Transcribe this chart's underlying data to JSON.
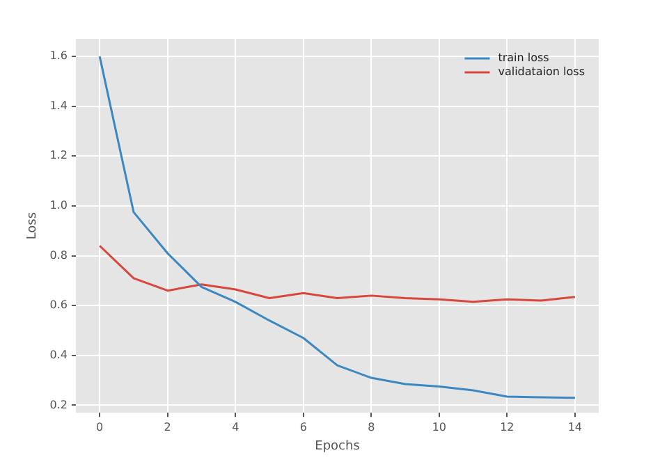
{
  "chart_data": {
    "type": "line",
    "xlabel": "Epochs",
    "ylabel": "Loss",
    "x": [
      0,
      1,
      2,
      3,
      4,
      5,
      6,
      7,
      8,
      9,
      10,
      11,
      12,
      13,
      14
    ],
    "series": [
      {
        "name": "train loss",
        "color": "#3b87c2",
        "values": [
          1.6,
          0.975,
          0.81,
          0.675,
          0.615,
          0.54,
          0.47,
          0.36,
          0.31,
          0.285,
          0.275,
          0.26,
          0.235,
          0.232,
          0.23
        ]
      },
      {
        "name": "validataion loss",
        "color": "#d8463c",
        "values": [
          0.84,
          0.71,
          0.66,
          0.685,
          0.665,
          0.63,
          0.65,
          0.63,
          0.64,
          0.63,
          0.625,
          0.615,
          0.625,
          0.62,
          0.635
        ]
      }
    ],
    "xlim": [
      -0.7,
      14.7
    ],
    "xticks": [
      0,
      2,
      4,
      6,
      8,
      10,
      12,
      14
    ],
    "ylim": [
      0.17,
      1.67
    ],
    "yticks": [
      {
        "value": 0.2,
        "label": "0.2"
      },
      {
        "value": 0.4,
        "label": "0.4"
      },
      {
        "value": 0.6,
        "label": "0.6"
      },
      {
        "value": 0.8,
        "label": "0.8"
      },
      {
        "value": 1,
        "label": "1.0"
      },
      {
        "value": 1.2,
        "label": "1.2"
      },
      {
        "value": 1.4,
        "label": "1.4"
      },
      {
        "value": 1.6,
        "label": "1.6"
      }
    ],
    "grid": true,
    "legend": "top right",
    "marker": "none",
    "line_style": "solid"
  }
}
